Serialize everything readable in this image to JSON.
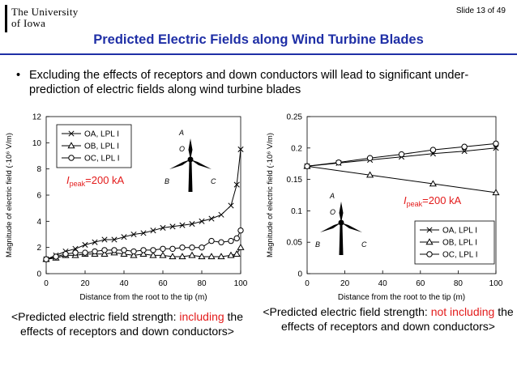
{
  "header": {
    "logo_line1": "The University",
    "logo_line2": "of Iowa",
    "slide_number": "Slide 13 of 49",
    "title": "Predicted Electric Fields along Wind Turbine Blades"
  },
  "bullet": {
    "text": "Excluding the effects of receptors and down conductors will lead to significant under-prediction of electric fields along wind turbine blades"
  },
  "colors": {
    "title_blue": "#1f2fa6",
    "caption_red": "#e31b1b"
  },
  "chart_data": [
    {
      "type": "line",
      "xlabel": "Distance from the root to the tip (m)",
      "ylabel": "Magnitude of electric field (·10⁶ V/m)",
      "xlim": [
        0,
        100
      ],
      "ylim": [
        0,
        12
      ],
      "xticks": [
        0,
        20,
        40,
        60,
        80,
        100
      ],
      "yticks": [
        0,
        2,
        4,
        6,
        8,
        10,
        12
      ],
      "legend_position": "top-left",
      "annotation": "Ipeak=200 kA",
      "diagram_labels": [
        "A",
        "O",
        "B",
        "C"
      ],
      "series": [
        {
          "name": "OA, LPL I",
          "marker": "x",
          "x": [
            0,
            5,
            10,
            15,
            20,
            25,
            30,
            35,
            40,
            45,
            50,
            55,
            60,
            65,
            70,
            75,
            80,
            85,
            90,
            95,
            98,
            100
          ],
          "y": [
            1.1,
            1.4,
            1.7,
            1.9,
            2.2,
            2.4,
            2.6,
            2.6,
            2.8,
            3.0,
            3.1,
            3.3,
            3.5,
            3.6,
            3.7,
            3.8,
            4.0,
            4.2,
            4.5,
            5.2,
            6.8,
            9.5
          ]
        },
        {
          "name": "OB, LPL I",
          "marker": "triangle",
          "x": [
            0,
            5,
            10,
            15,
            20,
            25,
            30,
            35,
            40,
            45,
            50,
            55,
            60,
            65,
            70,
            75,
            80,
            85,
            90,
            95,
            98,
            100
          ],
          "y": [
            1.1,
            1.2,
            1.4,
            1.4,
            1.5,
            1.5,
            1.5,
            1.6,
            1.5,
            1.4,
            1.5,
            1.4,
            1.4,
            1.3,
            1.3,
            1.4,
            1.3,
            1.3,
            1.3,
            1.4,
            1.5,
            2.0
          ]
        },
        {
          "name": "OC, LPL I",
          "marker": "circle",
          "x": [
            0,
            5,
            10,
            15,
            20,
            25,
            30,
            35,
            40,
            45,
            50,
            55,
            60,
            65,
            70,
            75,
            80,
            85,
            90,
            95,
            98,
            100
          ],
          "y": [
            1.1,
            1.3,
            1.5,
            1.6,
            1.6,
            1.7,
            1.8,
            1.8,
            1.8,
            1.7,
            1.8,
            1.8,
            1.9,
            1.9,
            2.0,
            2.0,
            2.0,
            2.5,
            2.4,
            2.5,
            2.7,
            3.3
          ]
        }
      ]
    },
    {
      "type": "line",
      "xlabel": "Distance from the root to the tip (m)",
      "ylabel": "Magnitude of electric field (·10⁶ V/m)",
      "xlim": [
        0,
        100
      ],
      "ylim": [
        0,
        0.25
      ],
      "xticks": [
        0,
        20,
        40,
        60,
        80,
        100
      ],
      "yticks": [
        0,
        0.05,
        0.1,
        0.15,
        0.2,
        0.25
      ],
      "legend_position": "bottom-right",
      "annotation": "Ipeak=200 kA",
      "diagram_labels": [
        "A",
        "O",
        "B",
        "C"
      ],
      "series": [
        {
          "name": "OA, LPL I",
          "marker": "x",
          "x": [
            0,
            16.7,
            33.3,
            50,
            66.7,
            83.3,
            100
          ],
          "y": [
            0.171,
            0.176,
            0.181,
            0.186,
            0.191,
            0.195,
            0.2
          ]
        },
        {
          "name": "OB, LPL I",
          "marker": "triangle",
          "x": [
            0,
            33.3,
            66.7,
            100
          ],
          "y": [
            0.171,
            0.157,
            0.143,
            0.129
          ]
        },
        {
          "name": "OC, LPL I",
          "marker": "circle",
          "x": [
            0,
            16.7,
            33.3,
            50,
            66.7,
            83.3,
            100
          ],
          "y": [
            0.171,
            0.177,
            0.184,
            0.19,
            0.197,
            0.202,
            0.207
          ]
        }
      ]
    }
  ],
  "captions": {
    "left": {
      "pre": "<Predicted electric field strength: ",
      "red": "including",
      "post": " the effects of receptors and down conductors>"
    },
    "right": {
      "pre": "<Predicted electric field strength: ",
      "red": "not including",
      "post": " the effects of receptors and down conductors>"
    }
  }
}
